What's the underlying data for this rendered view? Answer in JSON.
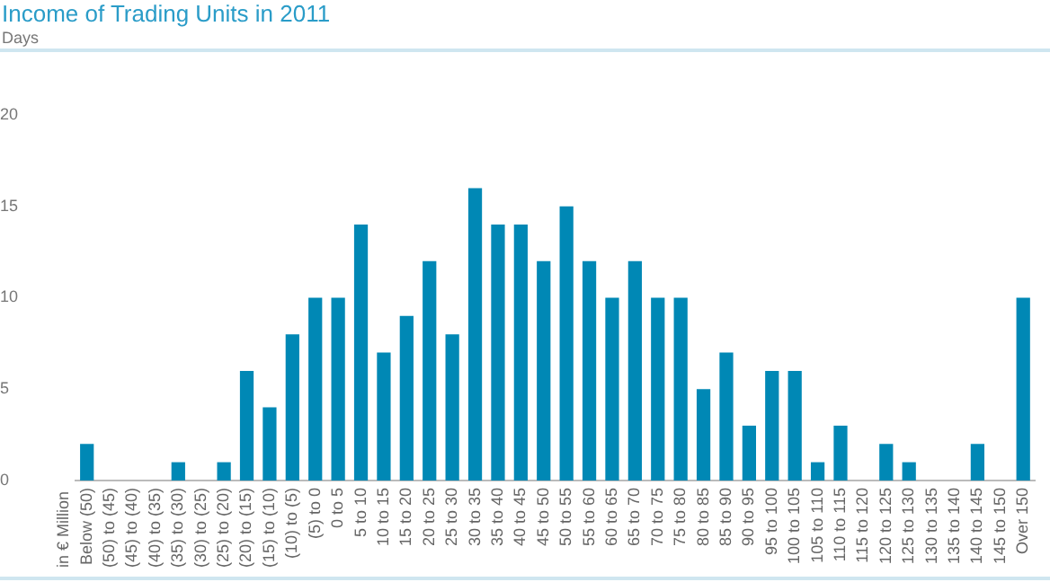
{
  "chart_data": {
    "type": "bar",
    "title": "Income of Trading Units in 2011",
    "ylabel": "Days",
    "annotations": [
      "in € Million"
    ],
    "categories": [
      "Below (50)",
      "(50) to (45)",
      "(45) to (40)",
      "(40) to (35)",
      "(35) to (30)",
      "(30) to (25)",
      "(25) to (20)",
      "(20) to (15)",
      "(15) to (10)",
      "(10) to (5)",
      "(5) to 0",
      "0 to 5",
      "5 to 10",
      "10 to 15",
      "15 to 20",
      "20 to 25",
      "25 to 30",
      "30 to 35",
      "35 to 40",
      "40 to 45",
      "45 to 50",
      "50 to 55",
      "55 to 60",
      "60 to 65",
      "65 to 70",
      "70 to 75",
      "75 to 80",
      "80 to 85",
      "85 to 90",
      "90 to 95",
      "95 to 100",
      "100 to 105",
      "105 to 110",
      "110 to 115",
      "115 to 120",
      "120 to 125",
      "125 to 130",
      "130 to 135",
      "135 to 140",
      "140 to 145",
      "145 to 150",
      "Over 150"
    ],
    "values": [
      2,
      0,
      0,
      0,
      1,
      0,
      1,
      6,
      4,
      8,
      10,
      10,
      14,
      7,
      9,
      12,
      8,
      16,
      14,
      14,
      12,
      15,
      12,
      10,
      12,
      10,
      10,
      5,
      7,
      3,
      6,
      6,
      1,
      3,
      0,
      2,
      1,
      0,
      0,
      2,
      0,
      10
    ],
    "color": "#0088b5",
    "ylim": [
      0,
      20
    ],
    "yticks": [
      0,
      5,
      10,
      15,
      20
    ],
    "grid": false,
    "legend": false
  }
}
